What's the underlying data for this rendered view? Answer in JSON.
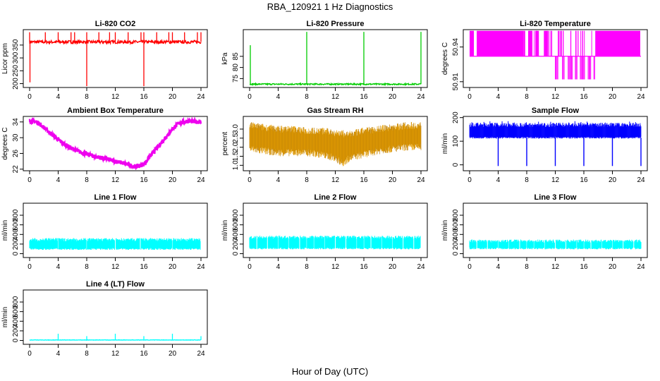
{
  "title": "RBA_120921  1 Hz Diagnostics",
  "xlabel": "Hour of Day (UTC)",
  "colors": {
    "co2": "#ff0000",
    "pressure": "#00cc00",
    "temperature": "#ff00ff",
    "ambient": "#ee00ee",
    "rh": "#e8a000",
    "rh_stipple": "#c08000",
    "sample_flow": "#0000ff",
    "line_flow": "#00ffff",
    "axis": "#000000"
  },
  "chart_data": [
    {
      "id": "co2",
      "type": "line",
      "title": "Li-820 CO2",
      "ylabel": "Licor ppm",
      "xlim": [
        0,
        24
      ],
      "ylim": [
        185,
        410
      ],
      "yticks": [
        "200",
        "250",
        "300",
        "350"
      ],
      "ytick_values": [
        200,
        250,
        300,
        350
      ],
      "xticks": [
        0,
        4,
        8,
        12,
        16,
        20,
        24
      ],
      "pattern": "baseline-spikes",
      "baseline": 362,
      "noise": 6,
      "spikes_up": [
        {
          "x": 0.0,
          "y": 400
        },
        {
          "x": 2.2,
          "y": 400
        },
        {
          "x": 4.0,
          "y": 400
        },
        {
          "x": 5.8,
          "y": 400
        },
        {
          "x": 6.3,
          "y": 400
        },
        {
          "x": 8.0,
          "y": 400
        },
        {
          "x": 9.7,
          "y": 400
        },
        {
          "x": 11.2,
          "y": 400
        },
        {
          "x": 12.0,
          "y": 400
        },
        {
          "x": 13.8,
          "y": 400
        },
        {
          "x": 15.6,
          "y": 400
        },
        {
          "x": 16.0,
          "y": 400
        },
        {
          "x": 17.8,
          "y": 400
        },
        {
          "x": 19.5,
          "y": 400
        },
        {
          "x": 20.0,
          "y": 400
        },
        {
          "x": 21.7,
          "y": 400
        },
        {
          "x": 23.5,
          "y": 400
        },
        {
          "x": 24.0,
          "y": 400
        }
      ],
      "spikes_down": [
        {
          "x": 0.05,
          "y": 205
        },
        {
          "x": 8.0,
          "y": 190
        },
        {
          "x": 16.0,
          "y": 190
        }
      ]
    },
    {
      "id": "pressure",
      "type": "line",
      "title": "Li-820 Pressure",
      "ylabel": "kPa",
      "xlim": [
        0,
        24
      ],
      "ylim": [
        71,
        97
      ],
      "yticks": [
        "75",
        "80",
        "85"
      ],
      "ytick_values": [
        75,
        80,
        85
      ],
      "xticks": [
        0,
        4,
        8,
        12,
        16,
        20,
        24
      ],
      "pattern": "baseline-spikes",
      "baseline": 72.5,
      "noise": 0.3,
      "spikes_up": [
        {
          "x": 0.1,
          "y": 90
        },
        {
          "x": 8.0,
          "y": 96
        },
        {
          "x": 16.0,
          "y": 96
        },
        {
          "x": 24.0,
          "y": 96
        }
      ],
      "spikes_down": []
    },
    {
      "id": "temperature",
      "type": "step",
      "title": "Li-820 Temperature",
      "ylabel": "degrees C",
      "xlim": [
        0,
        24
      ],
      "ylim": [
        50.905,
        50.955
      ],
      "yticks": [
        "50.91",
        "50.94"
      ],
      "ytick_values": [
        50.91,
        50.94
      ],
      "xticks": [
        0,
        4,
        8,
        12,
        16,
        20,
        24
      ],
      "pattern": "two-level-toggle",
      "level_high": 50.954,
      "level_mid": 50.932,
      "level_low": 50.912,
      "high_segments": [
        [
          0.0,
          0.6
        ],
        [
          1.0,
          7.5
        ],
        [
          8.2,
          8.8
        ],
        [
          9.2,
          9.7
        ],
        [
          10.4,
          11.0
        ],
        [
          17.6,
          23.9
        ]
      ],
      "low_segments": [
        [
          12.0,
          12.4
        ],
        [
          13.0,
          13.3
        ],
        [
          13.8,
          14.4
        ],
        [
          14.8,
          15.1
        ],
        [
          15.5,
          16.2
        ],
        [
          16.6,
          17.0
        ],
        [
          17.4,
          17.6
        ]
      ]
    },
    {
      "id": "ambient",
      "type": "line",
      "title": "Ambient Box Temperature",
      "ylabel": "degrees C",
      "xlim": [
        0,
        24
      ],
      "ylim": [
        21.6,
        35.4
      ],
      "yticks": [
        "22",
        "26",
        "30",
        "34"
      ],
      "ytick_values": [
        22,
        26,
        30,
        34
      ],
      "xticks": [
        0,
        4,
        8,
        12,
        16,
        20,
        24
      ],
      "pattern": "smooth-curve",
      "points": [
        [
          0,
          34.3
        ],
        [
          1,
          34.0
        ],
        [
          2,
          32.6
        ],
        [
          3,
          31.0
        ],
        [
          4,
          29.5
        ],
        [
          5,
          28.2
        ],
        [
          6,
          27.2
        ],
        [
          7,
          26.4
        ],
        [
          8,
          25.8
        ],
        [
          9,
          25.3
        ],
        [
          10,
          24.9
        ],
        [
          11,
          24.5
        ],
        [
          12,
          24.0
        ],
        [
          13,
          23.6
        ],
        [
          14,
          23.0
        ],
        [
          15,
          22.6
        ],
        [
          16,
          23.3
        ],
        [
          17,
          25.5
        ],
        [
          18,
          27.7
        ],
        [
          19,
          30.0
        ],
        [
          20,
          32.2
        ],
        [
          21,
          33.8
        ],
        [
          22,
          34.2
        ],
        [
          23,
          34.1
        ],
        [
          24,
          34.0
        ]
      ],
      "noise": 0.55
    },
    {
      "id": "rh",
      "type": "band",
      "title": "Gas Stream RH",
      "ylabel": "percent",
      "xlim": [
        0,
        24
      ],
      "ylim": [
        0.7,
        3.7
      ],
      "yticks": [
        "1.0",
        "1.5",
        "2.0",
        "2.5",
        "3.0"
      ],
      "ytick_values": [
        1.0,
        1.5,
        2.0,
        2.5,
        3.0
      ],
      "xticks": [
        0,
        4,
        8,
        12,
        16,
        20,
        24
      ],
      "pattern": "noise-band",
      "upper": [
        [
          0,
          3.2
        ],
        [
          2,
          3.1
        ],
        [
          4,
          3.0
        ],
        [
          6,
          3.0
        ],
        [
          8,
          2.9
        ],
        [
          10,
          2.9
        ],
        [
          12,
          2.8
        ],
        [
          14,
          2.7
        ],
        [
          16,
          2.9
        ],
        [
          18,
          3.0
        ],
        [
          20,
          3.1
        ],
        [
          22,
          3.2
        ],
        [
          24,
          3.2
        ]
      ],
      "lower": [
        [
          0,
          1.9
        ],
        [
          2,
          1.8
        ],
        [
          4,
          1.7
        ],
        [
          6,
          1.7
        ],
        [
          8,
          1.7
        ],
        [
          10,
          1.6
        ],
        [
          12,
          1.4
        ],
        [
          13,
          1.1
        ],
        [
          14,
          1.4
        ],
        [
          16,
          1.6
        ],
        [
          18,
          1.8
        ],
        [
          20,
          1.9
        ],
        [
          22,
          2.0
        ],
        [
          24,
          2.0
        ]
      ]
    },
    {
      "id": "sample_flow",
      "type": "band",
      "title": "Sample Flow",
      "ylabel": "ml/min",
      "xlim": [
        0,
        24
      ],
      "ylim": [
        -25,
        205
      ],
      "yticks": [
        "0",
        "100",
        "200"
      ],
      "ytick_values": [
        0,
        100,
        200
      ],
      "xticks": [
        0,
        4,
        8,
        12,
        16,
        20,
        24
      ],
      "pattern": "noise-band-dips",
      "upper_level": 160,
      "lower_level": 115,
      "peak_level": 185,
      "dips": [
        {
          "x": 4.0,
          "y": -5
        },
        {
          "x": 8.0,
          "y": -5
        },
        {
          "x": 12.0,
          "y": -5
        },
        {
          "x": 16.0,
          "y": -5
        },
        {
          "x": 20.0,
          "y": -5
        },
        {
          "x": 24.0,
          "y": -5
        }
      ]
    },
    {
      "id": "line1",
      "type": "band",
      "title": "Line 1 Flow",
      "ylabel": "ml/min",
      "xlim": [
        0,
        24
      ],
      "ylim": [
        -80,
        1050
      ],
      "yticks": [
        "0",
        "200",
        "400",
        "600",
        "800"
      ],
      "ytick_values": [
        0,
        200,
        400,
        600,
        800
      ],
      "xticks": [
        0,
        4,
        8,
        12,
        16,
        20,
        24
      ],
      "pattern": "flow-band",
      "upper_level": 290,
      "lower_level": 100,
      "gaps": [
        4,
        8,
        12,
        15.5,
        20,
        24
      ]
    },
    {
      "id": "line2",
      "type": "band",
      "title": "Line 2 Flow",
      "ylabel": "ml/min",
      "xlim": [
        0,
        24
      ],
      "ylim": [
        -80,
        1050
      ],
      "yticks": [
        "0",
        "200",
        "400",
        "600",
        "800"
      ],
      "ytick_values": [
        0,
        200,
        400,
        600,
        800
      ],
      "xticks": [
        0,
        4,
        8,
        12,
        16,
        20,
        24
      ],
      "pattern": "flow-band",
      "upper_level": 340,
      "lower_level": 110,
      "gaps": [
        1,
        2.5,
        4,
        5.5,
        7,
        8,
        9,
        10.5,
        12,
        13.5,
        15,
        16,
        17,
        18.5,
        20,
        21.5,
        23,
        24
      ]
    },
    {
      "id": "line3",
      "type": "band",
      "title": "Line 3 Flow",
      "ylabel": "ml/min",
      "xlim": [
        0,
        24
      ],
      "ylim": [
        -80,
        1050
      ],
      "yticks": [
        "0",
        "200",
        "400",
        "600",
        "800"
      ],
      "ytick_values": [
        0,
        200,
        400,
        600,
        800
      ],
      "xticks": [
        0,
        4,
        8,
        12,
        16,
        20,
        24
      ],
      "pattern": "flow-band",
      "upper_level": 260,
      "lower_level": 110,
      "gaps": [
        1,
        2.5,
        4,
        5.5,
        7,
        8,
        9,
        10.5,
        12,
        13.5,
        15,
        16,
        17,
        18.5,
        20,
        21.5,
        23
      ]
    },
    {
      "id": "line4",
      "type": "line",
      "title": "Line 4 (LT) Flow",
      "ylabel": "ml/min",
      "xlim": [
        0,
        24
      ],
      "ylim": [
        -80,
        1050
      ],
      "yticks": [
        "0",
        "200",
        "400",
        "600",
        "800"
      ],
      "ytick_values": [
        0,
        200,
        400,
        600,
        800
      ],
      "xticks": [
        0,
        4,
        8,
        12,
        16,
        20,
        24
      ],
      "pattern": "baseline-spikes",
      "baseline": 10,
      "noise": 4,
      "spikes_up": [
        {
          "x": 4.0,
          "y": 140
        },
        {
          "x": 8.0,
          "y": 90
        },
        {
          "x": 12.0,
          "y": 140
        },
        {
          "x": 16.0,
          "y": 90
        },
        {
          "x": 20.0,
          "y": 140
        },
        {
          "x": 24.0,
          "y": 90
        }
      ],
      "spikes_down": []
    }
  ]
}
